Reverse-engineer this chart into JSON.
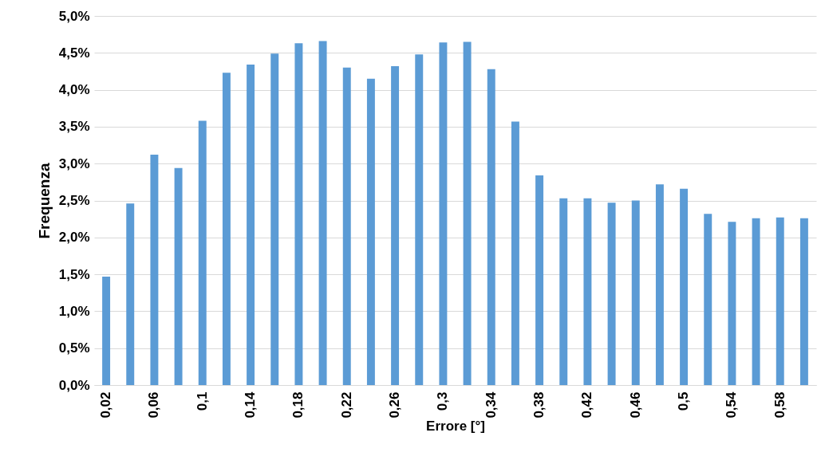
{
  "chart_data": {
    "type": "bar",
    "xlabel": "Errore [°]",
    "ylabel": "Frequenza",
    "categories": [
      "0,02",
      null,
      "0,06",
      null,
      "0,1",
      null,
      "0,14",
      null,
      "0,18",
      null,
      "0,22",
      null,
      "0,26",
      null,
      "0,3",
      null,
      "0,34",
      null,
      "0,38",
      null,
      "0,42",
      null,
      "0,46",
      null,
      "0,5",
      null,
      "0,54",
      null,
      "0,58",
      null
    ],
    "series": [
      {
        "color": "#5b9bd5",
        "values": [
          1.47,
          2.46,
          3.12,
          2.94,
          3.58,
          4.23,
          4.34,
          4.49,
          4.63,
          4.66,
          4.3,
          4.15,
          4.32,
          4.48,
          4.64,
          4.65,
          4.28,
          3.57,
          2.84,
          2.53,
          2.53,
          2.47,
          2.5,
          2.72,
          2.66,
          2.32,
          2.21,
          2.26,
          2.27,
          2.26
        ]
      }
    ],
    "ylim": [
      0,
      5
    ],
    "yticks": [
      {
        "value": 0,
        "label": "0,0%"
      },
      {
        "value": 0.5,
        "label": "0,5%"
      },
      {
        "value": 1,
        "label": "1,0%"
      },
      {
        "value": 1.5,
        "label": "1,5%"
      },
      {
        "value": 2,
        "label": "2,0%"
      },
      {
        "value": 2.5,
        "label": "2,5%"
      },
      {
        "value": 3,
        "label": "3,0%"
      },
      {
        "value": 3.5,
        "label": "3,5%"
      },
      {
        "value": 4,
        "label": "4,0%"
      },
      {
        "value": 4.5,
        "label": "4,5%"
      },
      {
        "value": 5,
        "label": "5,0%"
      }
    ],
    "grid": "y",
    "legend": false
  }
}
